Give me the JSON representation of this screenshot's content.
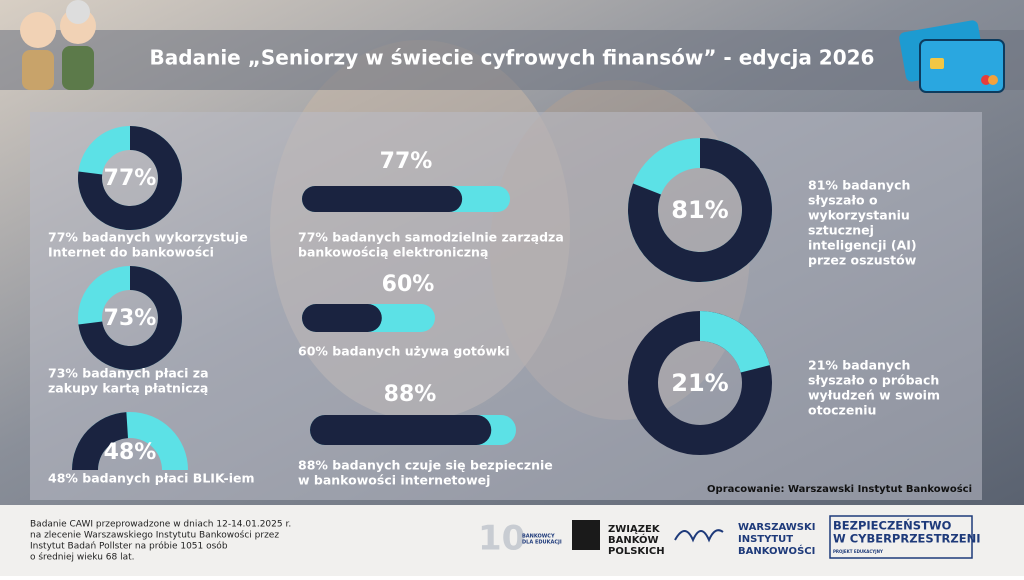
{
  "header": {
    "title": "Badanie „Seniorzy w świecie cyfrowych finansów” - edycja 2026"
  },
  "chart_data": [
    {
      "type": "donut",
      "values": [
        77
      ],
      "value_labels": [
        "77%"
      ],
      "color": "#1a2340",
      "track": "#5ce1e6",
      "caption": [
        "77% badanych wykorzystuje",
        "Internet do bankowości"
      ]
    },
    {
      "type": "donut",
      "values": [
        73
      ],
      "value_labels": [
        "73%"
      ],
      "color": "#1a2340",
      "track": "#5ce1e6",
      "caption": [
        "73% badanych płaci za",
        "zakupy kartą płatniczą"
      ]
    },
    {
      "type": "gauge",
      "values": [
        48
      ],
      "value_labels": [
        "48%"
      ],
      "color": "#1a2340",
      "track": "#5ce1e6",
      "caption": [
        "48% badanych płaci BLIK-iem"
      ]
    },
    {
      "type": "bar",
      "values": [
        77
      ],
      "value_labels": [
        "77%"
      ],
      "color": "#1a2340",
      "track": "#5ce1e6",
      "caption": [
        "77% badanych samodzielnie zarządza",
        "bankowością elektroniczną"
      ]
    },
    {
      "type": "bar",
      "values": [
        60
      ],
      "value_labels": [
        "60%"
      ],
      "color": "#1a2340",
      "track": "#5ce1e6",
      "caption": [
        "60% badanych używa gotówki"
      ]
    },
    {
      "type": "bar",
      "values": [
        88
      ],
      "value_labels": [
        "88%"
      ],
      "color": "#1a2340",
      "track": "#5ce1e6",
      "caption": [
        "88% badanych czuje się bezpiecznie",
        "w bankowości internetowej"
      ]
    },
    {
      "type": "donut",
      "values": [
        81
      ],
      "value_labels": [
        "81%"
      ],
      "color": "#1a2340",
      "track": "#5ce1e6",
      "caption": [
        "81% badanych",
        "słyszało o",
        "wykorzystaniu",
        "sztucznej",
        "inteligencji (AI)",
        "przez oszustów"
      ]
    },
    {
      "type": "donut",
      "values": [
        21
      ],
      "value_labels": [
        "21%"
      ],
      "color": "#5ce1e6",
      "track": "#1a2340",
      "caption": [
        "21% badanych",
        "słyszało o próbach",
        "wyłudzeń w swoim",
        "otoczeniu"
      ]
    }
  ],
  "credit": "Opracowanie: Warszawski Instytut Bankowości",
  "footer": {
    "note": [
      "Badanie CAWI przeprowadzone w dniach 12-14.01.2025 r.",
      "na zlecenie Warszawskiego Instytutu Bankowości przez",
      "Instytut Badań Pollster na próbie 1051 osób",
      "o średniej wieku 68 lat."
    ],
    "logos": [
      {
        "lines": [
          "BANKOWCY",
          "DLA EDUKACJI"
        ]
      },
      {
        "lines": [
          "ZWIĄZEK",
          "BANKÓW",
          "POLSKICH"
        ]
      },
      {
        "lines": [
          "WARSZAWSKI",
          "INSTYTUT",
          "BANKOWOŚCI"
        ]
      },
      {
        "lines": [
          "BEZPIECZEŃSTWO",
          "W CYBERPRZESTRZENI",
          "PROJEKT EDUKACYJNY"
        ]
      }
    ]
  }
}
